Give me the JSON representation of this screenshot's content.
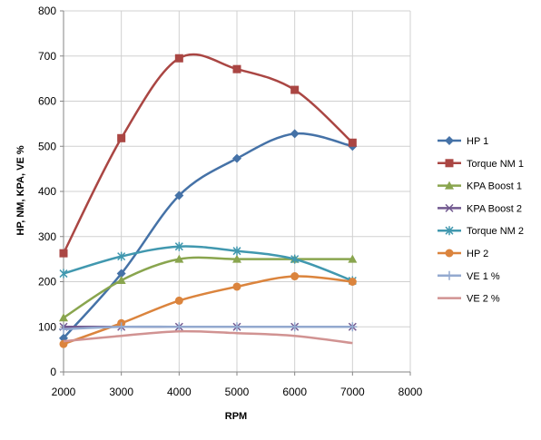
{
  "chart_data": {
    "type": "line",
    "title": "",
    "xlabel": "RPM",
    "ylabel": "HP, NM, KPA, VE %",
    "xlim": [
      2000,
      8000
    ],
    "ylim": [
      0,
      800
    ],
    "xticks": [
      2000,
      3000,
      4000,
      5000,
      6000,
      7000,
      8000
    ],
    "yticks": [
      0,
      100,
      200,
      300,
      400,
      500,
      600,
      700,
      800
    ],
    "grid": true,
    "smooth": true,
    "legend_position": "right",
    "x": [
      2000,
      3000,
      4000,
      5000,
      6000,
      7000
    ],
    "series": [
      {
        "name": "HP 1",
        "color": "#4572A7",
        "marker": "diamond",
        "values": [
          75,
          218,
          391,
          473,
          528,
          500
        ]
      },
      {
        "name": "Torque NM 1",
        "color": "#AA4643",
        "marker": "square",
        "values": [
          263,
          518,
          695,
          671,
          625,
          508
        ]
      },
      {
        "name": "KPA Boost 1",
        "color": "#89A54E",
        "marker": "triangle",
        "values": [
          120,
          203,
          250,
          250,
          250,
          250
        ]
      },
      {
        "name": "KPA Boost 2",
        "color": "#71588F",
        "marker": "x",
        "values": [
          100,
          100,
          100,
          100,
          100,
          100
        ]
      },
      {
        "name": "Torque NM 2",
        "color": "#4198AF",
        "marker": "star",
        "values": [
          218,
          256,
          278,
          268,
          250,
          202
        ]
      },
      {
        "name": "HP 2",
        "color": "#DB843D",
        "marker": "circle",
        "values": [
          62,
          108,
          158,
          189,
          212,
          200
        ]
      },
      {
        "name": "VE 1 %",
        "color": "#93A9CF",
        "marker": "plus",
        "values": [
          95,
          100,
          100,
          100,
          100,
          100
        ]
      },
      {
        "name": "VE 2 %",
        "color": "#D19392",
        "marker": "none",
        "values": [
          68,
          80,
          90,
          86,
          80,
          64
        ]
      }
    ]
  }
}
